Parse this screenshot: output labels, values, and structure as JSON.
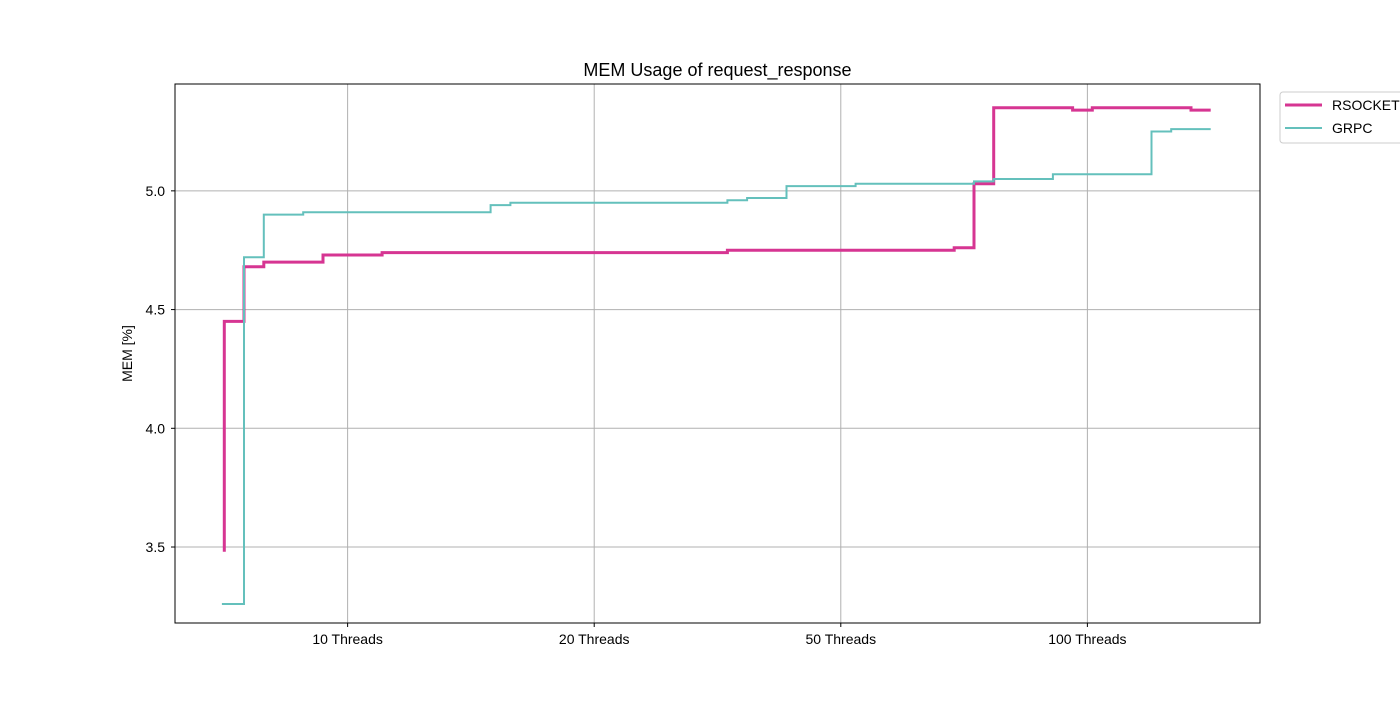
{
  "chart_data": {
    "type": "line",
    "step": true,
    "title": "MEM Usage of request_response",
    "xlabel": "",
    "ylabel": "MEM [%]",
    "ylim": [
      3.18,
      5.45
    ],
    "yticks": [
      "3.5",
      "4.0",
      "4.5",
      "5.0"
    ],
    "ytick_values": [
      3.5,
      4.0,
      4.5,
      5.0
    ],
    "xlim": [
      0,
      44
    ],
    "xticks": [
      "10 Threads",
      "20 Threads",
      "50 Threads",
      "100 Threads"
    ],
    "xtick_values": [
      7,
      17,
      27,
      37
    ],
    "grid": true,
    "legend": {
      "position": "outside top-right"
    },
    "series": [
      {
        "name": "RSOCKET",
        "color": "#d63592",
        "linewidth": 3,
        "points": [
          [
            2,
            3.48
          ],
          [
            2,
            4.45
          ],
          [
            2.8,
            4.45
          ],
          [
            2.8,
            4.68
          ],
          [
            3.6,
            4.68
          ],
          [
            3.6,
            4.7
          ],
          [
            6,
            4.7
          ],
          [
            6,
            4.73
          ],
          [
            8.4,
            4.73
          ],
          [
            8.4,
            4.74
          ],
          [
            22.4,
            4.74
          ],
          [
            22.4,
            4.75
          ],
          [
            31.6,
            4.75
          ],
          [
            31.6,
            4.76
          ],
          [
            32.4,
            4.76
          ],
          [
            32.4,
            5.03
          ],
          [
            33.2,
            5.03
          ],
          [
            33.2,
            5.35
          ],
          [
            36.4,
            5.35
          ],
          [
            36.4,
            5.34
          ],
          [
            37.2,
            5.34
          ],
          [
            37.2,
            5.35
          ],
          [
            41.2,
            5.35
          ],
          [
            41.2,
            5.34
          ],
          [
            42.0,
            5.34
          ]
        ]
      },
      {
        "name": "GRPC",
        "color": "#64c0bc",
        "linewidth": 2,
        "points": [
          [
            1.9,
            3.26
          ],
          [
            2.8,
            3.26
          ],
          [
            2.8,
            4.72
          ],
          [
            3.6,
            4.72
          ],
          [
            3.6,
            4.9
          ],
          [
            5.2,
            4.9
          ],
          [
            5.2,
            4.91
          ],
          [
            12.8,
            4.91
          ],
          [
            12.8,
            4.94
          ],
          [
            13.6,
            4.94
          ],
          [
            13.6,
            4.95
          ],
          [
            22.4,
            4.95
          ],
          [
            22.4,
            4.96
          ],
          [
            23.2,
            4.96
          ],
          [
            23.2,
            4.97
          ],
          [
            24.8,
            4.97
          ],
          [
            24.8,
            5.02
          ],
          [
            27.6,
            5.02
          ],
          [
            27.6,
            5.03
          ],
          [
            32.4,
            5.03
          ],
          [
            32.4,
            5.04
          ],
          [
            33.2,
            5.04
          ],
          [
            33.2,
            5.05
          ],
          [
            35.6,
            5.05
          ],
          [
            35.6,
            5.07
          ],
          [
            39.6,
            5.07
          ],
          [
            39.6,
            5.25
          ],
          [
            40.4,
            5.25
          ],
          [
            40.4,
            5.26
          ],
          [
            42.0,
            5.26
          ]
        ]
      }
    ]
  }
}
